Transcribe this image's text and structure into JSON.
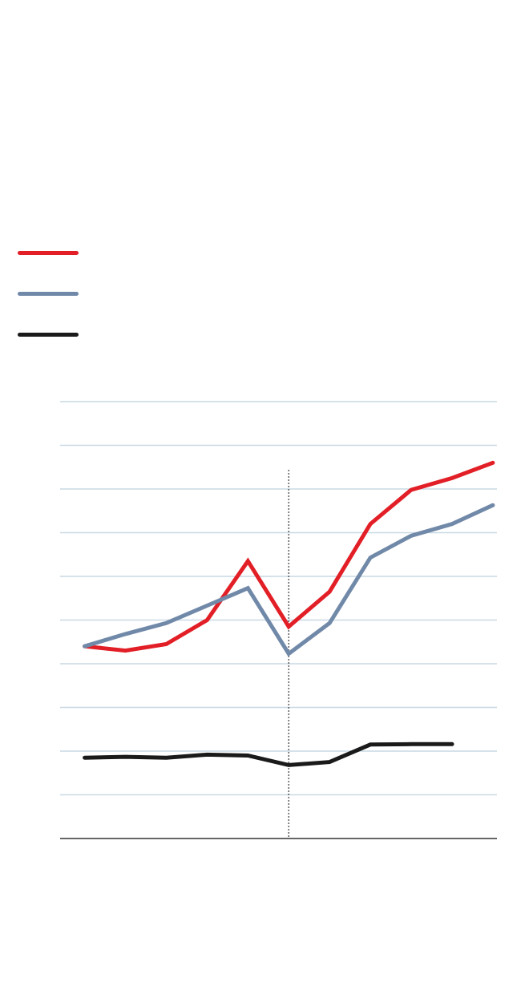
{
  "chart_data": {
    "type": "line",
    "title": "",
    "xlabel": "",
    "ylabel": "",
    "x": [
      1,
      2,
      3,
      4,
      5,
      6,
      7,
      8,
      9,
      10,
      11
    ],
    "xlim": [
      0.4,
      11.1
    ],
    "ylim": [
      0,
      10
    ],
    "y_gridlines": [
      1,
      2,
      3,
      4,
      5,
      6,
      7,
      8,
      9,
      10
    ],
    "grid": true,
    "reference_line_x": 6,
    "legend_position": "top-left",
    "series": [
      {
        "color": "#e21f26",
        "values": [
          4.4,
          4.3,
          4.45,
          5.0,
          6.35,
          4.85,
          5.65,
          7.2,
          7.98,
          8.25,
          8.6
        ]
      },
      {
        "color": "#7189a8",
        "values": [
          4.4,
          4.68,
          4.93,
          5.33,
          5.73,
          4.23,
          4.93,
          6.43,
          6.93,
          7.2,
          7.63
        ]
      },
      {
        "color": "#1a1a1a",
        "values": [
          1.85,
          1.87,
          1.85,
          1.92,
          1.9,
          1.68,
          1.75,
          2.15,
          2.16,
          2.16,
          null
        ]
      }
    ]
  },
  "colors": {
    "grid": "#c9d9e4",
    "axis": "#333333",
    "reference_line": "#333333"
  }
}
